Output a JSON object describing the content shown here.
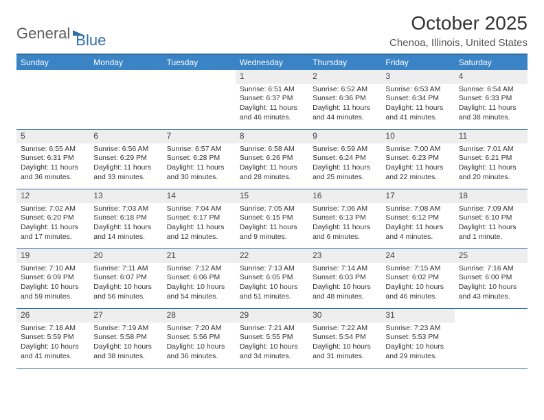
{
  "logo": {
    "text1": "General",
    "text2": "Blue"
  },
  "title": "October 2025",
  "subtitle": "Chenoa, Illinois, United States",
  "colors": {
    "header_bg": "#3a83c5",
    "border": "#2f6fa8",
    "datenum_bg": "#eeeeee",
    "text": "#333333"
  },
  "daynames": [
    "Sunday",
    "Monday",
    "Tuesday",
    "Wednesday",
    "Thursday",
    "Friday",
    "Saturday"
  ],
  "weeks": [
    [
      {
        "day": "",
        "sunrise": "",
        "sunset": "",
        "daylight": ""
      },
      {
        "day": "",
        "sunrise": "",
        "sunset": "",
        "daylight": ""
      },
      {
        "day": "",
        "sunrise": "",
        "sunset": "",
        "daylight": ""
      },
      {
        "day": "1",
        "sunrise": "Sunrise: 6:51 AM",
        "sunset": "Sunset: 6:37 PM",
        "daylight": "Daylight: 11 hours and 46 minutes."
      },
      {
        "day": "2",
        "sunrise": "Sunrise: 6:52 AM",
        "sunset": "Sunset: 6:36 PM",
        "daylight": "Daylight: 11 hours and 44 minutes."
      },
      {
        "day": "3",
        "sunrise": "Sunrise: 6:53 AM",
        "sunset": "Sunset: 6:34 PM",
        "daylight": "Daylight: 11 hours and 41 minutes."
      },
      {
        "day": "4",
        "sunrise": "Sunrise: 6:54 AM",
        "sunset": "Sunset: 6:33 PM",
        "daylight": "Daylight: 11 hours and 38 minutes."
      }
    ],
    [
      {
        "day": "5",
        "sunrise": "Sunrise: 6:55 AM",
        "sunset": "Sunset: 6:31 PM",
        "daylight": "Daylight: 11 hours and 36 minutes."
      },
      {
        "day": "6",
        "sunrise": "Sunrise: 6:56 AM",
        "sunset": "Sunset: 6:29 PM",
        "daylight": "Daylight: 11 hours and 33 minutes."
      },
      {
        "day": "7",
        "sunrise": "Sunrise: 6:57 AM",
        "sunset": "Sunset: 6:28 PM",
        "daylight": "Daylight: 11 hours and 30 minutes."
      },
      {
        "day": "8",
        "sunrise": "Sunrise: 6:58 AM",
        "sunset": "Sunset: 6:26 PM",
        "daylight": "Daylight: 11 hours and 28 minutes."
      },
      {
        "day": "9",
        "sunrise": "Sunrise: 6:59 AM",
        "sunset": "Sunset: 6:24 PM",
        "daylight": "Daylight: 11 hours and 25 minutes."
      },
      {
        "day": "10",
        "sunrise": "Sunrise: 7:00 AM",
        "sunset": "Sunset: 6:23 PM",
        "daylight": "Daylight: 11 hours and 22 minutes."
      },
      {
        "day": "11",
        "sunrise": "Sunrise: 7:01 AM",
        "sunset": "Sunset: 6:21 PM",
        "daylight": "Daylight: 11 hours and 20 minutes."
      }
    ],
    [
      {
        "day": "12",
        "sunrise": "Sunrise: 7:02 AM",
        "sunset": "Sunset: 6:20 PM",
        "daylight": "Daylight: 11 hours and 17 minutes."
      },
      {
        "day": "13",
        "sunrise": "Sunrise: 7:03 AM",
        "sunset": "Sunset: 6:18 PM",
        "daylight": "Daylight: 11 hours and 14 minutes."
      },
      {
        "day": "14",
        "sunrise": "Sunrise: 7:04 AM",
        "sunset": "Sunset: 6:17 PM",
        "daylight": "Daylight: 11 hours and 12 minutes."
      },
      {
        "day": "15",
        "sunrise": "Sunrise: 7:05 AM",
        "sunset": "Sunset: 6:15 PM",
        "daylight": "Daylight: 11 hours and 9 minutes."
      },
      {
        "day": "16",
        "sunrise": "Sunrise: 7:06 AM",
        "sunset": "Sunset: 6:13 PM",
        "daylight": "Daylight: 11 hours and 6 minutes."
      },
      {
        "day": "17",
        "sunrise": "Sunrise: 7:08 AM",
        "sunset": "Sunset: 6:12 PM",
        "daylight": "Daylight: 11 hours and 4 minutes."
      },
      {
        "day": "18",
        "sunrise": "Sunrise: 7:09 AM",
        "sunset": "Sunset: 6:10 PM",
        "daylight": "Daylight: 11 hours and 1 minute."
      }
    ],
    [
      {
        "day": "19",
        "sunrise": "Sunrise: 7:10 AM",
        "sunset": "Sunset: 6:09 PM",
        "daylight": "Daylight: 10 hours and 59 minutes."
      },
      {
        "day": "20",
        "sunrise": "Sunrise: 7:11 AM",
        "sunset": "Sunset: 6:07 PM",
        "daylight": "Daylight: 10 hours and 56 minutes."
      },
      {
        "day": "21",
        "sunrise": "Sunrise: 7:12 AM",
        "sunset": "Sunset: 6:06 PM",
        "daylight": "Daylight: 10 hours and 54 minutes."
      },
      {
        "day": "22",
        "sunrise": "Sunrise: 7:13 AM",
        "sunset": "Sunset: 6:05 PM",
        "daylight": "Daylight: 10 hours and 51 minutes."
      },
      {
        "day": "23",
        "sunrise": "Sunrise: 7:14 AM",
        "sunset": "Sunset: 6:03 PM",
        "daylight": "Daylight: 10 hours and 48 minutes."
      },
      {
        "day": "24",
        "sunrise": "Sunrise: 7:15 AM",
        "sunset": "Sunset: 6:02 PM",
        "daylight": "Daylight: 10 hours and 46 minutes."
      },
      {
        "day": "25",
        "sunrise": "Sunrise: 7:16 AM",
        "sunset": "Sunset: 6:00 PM",
        "daylight": "Daylight: 10 hours and 43 minutes."
      }
    ],
    [
      {
        "day": "26",
        "sunrise": "Sunrise: 7:18 AM",
        "sunset": "Sunset: 5:59 PM",
        "daylight": "Daylight: 10 hours and 41 minutes."
      },
      {
        "day": "27",
        "sunrise": "Sunrise: 7:19 AM",
        "sunset": "Sunset: 5:58 PM",
        "daylight": "Daylight: 10 hours and 38 minutes."
      },
      {
        "day": "28",
        "sunrise": "Sunrise: 7:20 AM",
        "sunset": "Sunset: 5:56 PM",
        "daylight": "Daylight: 10 hours and 36 minutes."
      },
      {
        "day": "29",
        "sunrise": "Sunrise: 7:21 AM",
        "sunset": "Sunset: 5:55 PM",
        "daylight": "Daylight: 10 hours and 34 minutes."
      },
      {
        "day": "30",
        "sunrise": "Sunrise: 7:22 AM",
        "sunset": "Sunset: 5:54 PM",
        "daylight": "Daylight: 10 hours and 31 minutes."
      },
      {
        "day": "31",
        "sunrise": "Sunrise: 7:23 AM",
        "sunset": "Sunset: 5:53 PM",
        "daylight": "Daylight: 10 hours and 29 minutes."
      },
      {
        "day": "",
        "sunrise": "",
        "sunset": "",
        "daylight": ""
      }
    ]
  ]
}
